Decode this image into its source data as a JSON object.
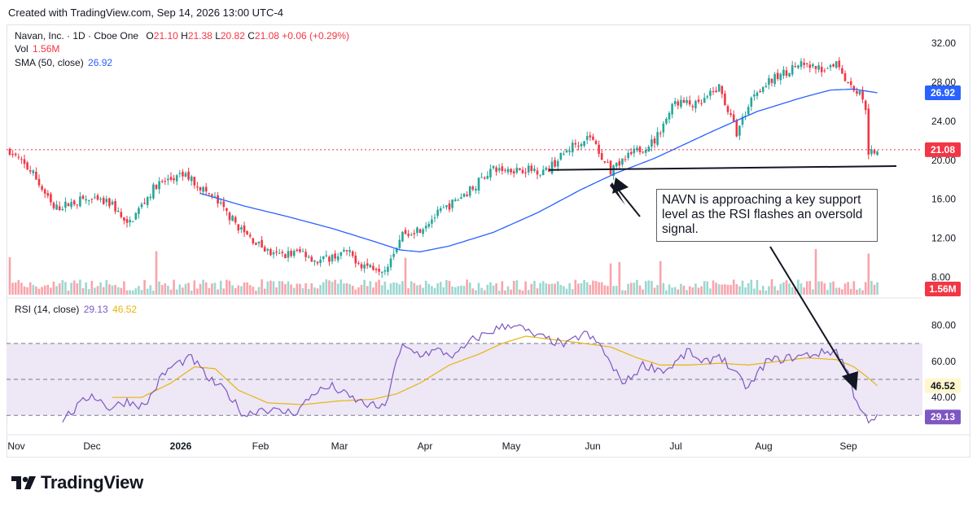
{
  "header": {
    "created": "Created with TradingView.com, Sep 14, 2026 13:00 UTC-4"
  },
  "legend": {
    "symbol": "Navan, Inc. · 1D · Cboe One",
    "o_label": "O",
    "o": "21.10",
    "h_label": "H",
    "h": "21.38",
    "l_label": "L",
    "l": "20.82",
    "c_label": "C",
    "c": "21.08",
    "change": "+0.06 (+0.29%)",
    "vol_label": "Vol",
    "vol": "1.56M",
    "sma_label": "SMA (50, close)",
    "sma": "26.92",
    "rsi_label": "RSI (14, close)",
    "rsi": "29.13",
    "rsi_ma": "46.52"
  },
  "annotation": {
    "text": "NAVN is approaching a key support level as the RSI flashes an oversold signal."
  },
  "brand": {
    "name": "TradingView"
  },
  "colors": {
    "up": "#26a69a",
    "down": "#f23645",
    "sma": "#2962ff",
    "rsi": "#7e57c2",
    "rsi_ma": "#e8b50b",
    "band": "#ede7f6"
  },
  "chart_data": {
    "type": "candlestick",
    "price_axis": {
      "ticks": [
        "32.00",
        "28.00",
        "24.00",
        "20.00",
        "16.00",
        "12.00",
        "8.00"
      ],
      "range": [
        6.2,
        33.6
      ]
    },
    "rsi_axis": {
      "ticks": [
        "80.00",
        "60.00",
        "40.00"
      ],
      "range": [
        22,
        88
      ],
      "bands": [
        30,
        50,
        70
      ]
    },
    "x_axis": {
      "labels": [
        "Nov",
        "Dec",
        "2026",
        "Feb",
        "Mar",
        "Apr",
        "May",
        "Jun",
        "Jul",
        "Aug",
        "Sep"
      ]
    },
    "last_price": {
      "label": "21.08",
      "value": 21.08
    },
    "sma_last": {
      "label": "26.92",
      "value": 26.92
    },
    "vol_last": {
      "label": "1.56M"
    },
    "rsi_last": {
      "label": "29.13",
      "value": 29.13
    },
    "rsi_ma_last": {
      "label": "46.52",
      "value": 46.52
    },
    "support_level": {
      "value": 19.3
    },
    "close_keypoints": [
      [
        0,
        21.0
      ],
      [
        8,
        18.6
      ],
      [
        15,
        15.0
      ],
      [
        25,
        16.0
      ],
      [
        35,
        15.5
      ],
      [
        40,
        13.2
      ],
      [
        50,
        17.5
      ],
      [
        60,
        18.5
      ],
      [
        70,
        16.0
      ],
      [
        80,
        12.5
      ],
      [
        90,
        10.2
      ],
      [
        100,
        10.6
      ],
      [
        105,
        9.6
      ],
      [
        115,
        10.6
      ],
      [
        120,
        9.3
      ],
      [
        128,
        8.9
      ],
      [
        134,
        12.5
      ],
      [
        140,
        13.0
      ],
      [
        146,
        14.5
      ],
      [
        152,
        15.8
      ],
      [
        158,
        17.2
      ],
      [
        164,
        19.0
      ],
      [
        175,
        19.1
      ],
      [
        183,
        18.9
      ],
      [
        192,
        21.5
      ],
      [
        198,
        22.5
      ],
      [
        205,
        18.8
      ],
      [
        212,
        20.6
      ],
      [
        220,
        22.0
      ],
      [
        227,
        26.0
      ],
      [
        235,
        25.6
      ],
      [
        242,
        27.5
      ],
      [
        248,
        22.8
      ],
      [
        254,
        27.0
      ],
      [
        262,
        28.6
      ],
      [
        269,
        29.8
      ],
      [
        277,
        29.3
      ],
      [
        282,
        30.2
      ],
      [
        286,
        28.0
      ],
      [
        290,
        26.8
      ],
      [
        292,
        25.5
      ],
      [
        293,
        20.9
      ],
      [
        296,
        21.08
      ]
    ],
    "sma_keypoints": [
      [
        65,
        16.6
      ],
      [
        80,
        15.3
      ],
      [
        95,
        14.2
      ],
      [
        110,
        13.0
      ],
      [
        125,
        11.6
      ],
      [
        133,
        10.8
      ],
      [
        140,
        10.6
      ],
      [
        150,
        11.2
      ],
      [
        165,
        12.6
      ],
      [
        180,
        14.6
      ],
      [
        195,
        17.0
      ],
      [
        207,
        18.7
      ],
      [
        220,
        20.2
      ],
      [
        240,
        23.0
      ],
      [
        255,
        25.0
      ],
      [
        270,
        26.4
      ],
      [
        280,
        27.2
      ],
      [
        288,
        27.3
      ],
      [
        296,
        26.92
      ]
    ],
    "rsi_keypoints": [
      [
        18,
        28
      ],
      [
        22,
        33
      ],
      [
        28,
        42
      ],
      [
        34,
        34
      ],
      [
        40,
        38
      ],
      [
        46,
        35
      ],
      [
        52,
        52
      ],
      [
        56,
        58
      ],
      [
        62,
        62
      ],
      [
        68,
        50
      ],
      [
        74,
        43
      ],
      [
        80,
        30
      ],
      [
        86,
        34
      ],
      [
        92,
        32
      ],
      [
        98,
        32
      ],
      [
        104,
        43
      ],
      [
        110,
        46
      ],
      [
        116,
        40
      ],
      [
        122,
        36
      ],
      [
        128,
        34
      ],
      [
        131,
        55
      ],
      [
        134,
        68
      ],
      [
        140,
        64
      ],
      [
        146,
        66
      ],
      [
        152,
        63
      ],
      [
        158,
        72
      ],
      [
        166,
        78
      ],
      [
        172,
        81
      ],
      [
        178,
        75
      ],
      [
        184,
        72
      ],
      [
        190,
        69
      ],
      [
        196,
        76
      ],
      [
        202,
        68
      ],
      [
        206,
        55
      ],
      [
        210,
        48
      ],
      [
        216,
        58
      ],
      [
        224,
        55
      ],
      [
        232,
        66
      ],
      [
        236,
        58
      ],
      [
        242,
        64
      ],
      [
        248,
        52
      ],
      [
        252,
        45
      ],
      [
        258,
        60
      ],
      [
        266,
        62
      ],
      [
        274,
        64
      ],
      [
        282,
        66
      ],
      [
        286,
        54
      ],
      [
        288,
        42
      ],
      [
        291,
        32
      ],
      [
        293,
        25
      ],
      [
        296,
        29.13
      ]
    ],
    "rsi_ma_keypoints": [
      [
        35,
        40
      ],
      [
        45,
        40
      ],
      [
        55,
        48
      ],
      [
        63,
        57
      ],
      [
        70,
        56
      ],
      [
        78,
        44
      ],
      [
        88,
        37
      ],
      [
        100,
        36
      ],
      [
        112,
        38
      ],
      [
        124,
        39
      ],
      [
        132,
        42
      ],
      [
        140,
        48
      ],
      [
        150,
        58
      ],
      [
        160,
        64
      ],
      [
        168,
        70
      ],
      [
        176,
        74
      ],
      [
        186,
        72
      ],
      [
        196,
        70
      ],
      [
        205,
        68
      ],
      [
        214,
        62
      ],
      [
        222,
        58
      ],
      [
        232,
        58
      ],
      [
        242,
        59
      ],
      [
        252,
        58
      ],
      [
        262,
        60
      ],
      [
        272,
        62
      ],
      [
        282,
        61
      ],
      [
        288,
        57
      ],
      [
        292,
        52
      ],
      [
        296,
        46.52
      ]
    ]
  }
}
